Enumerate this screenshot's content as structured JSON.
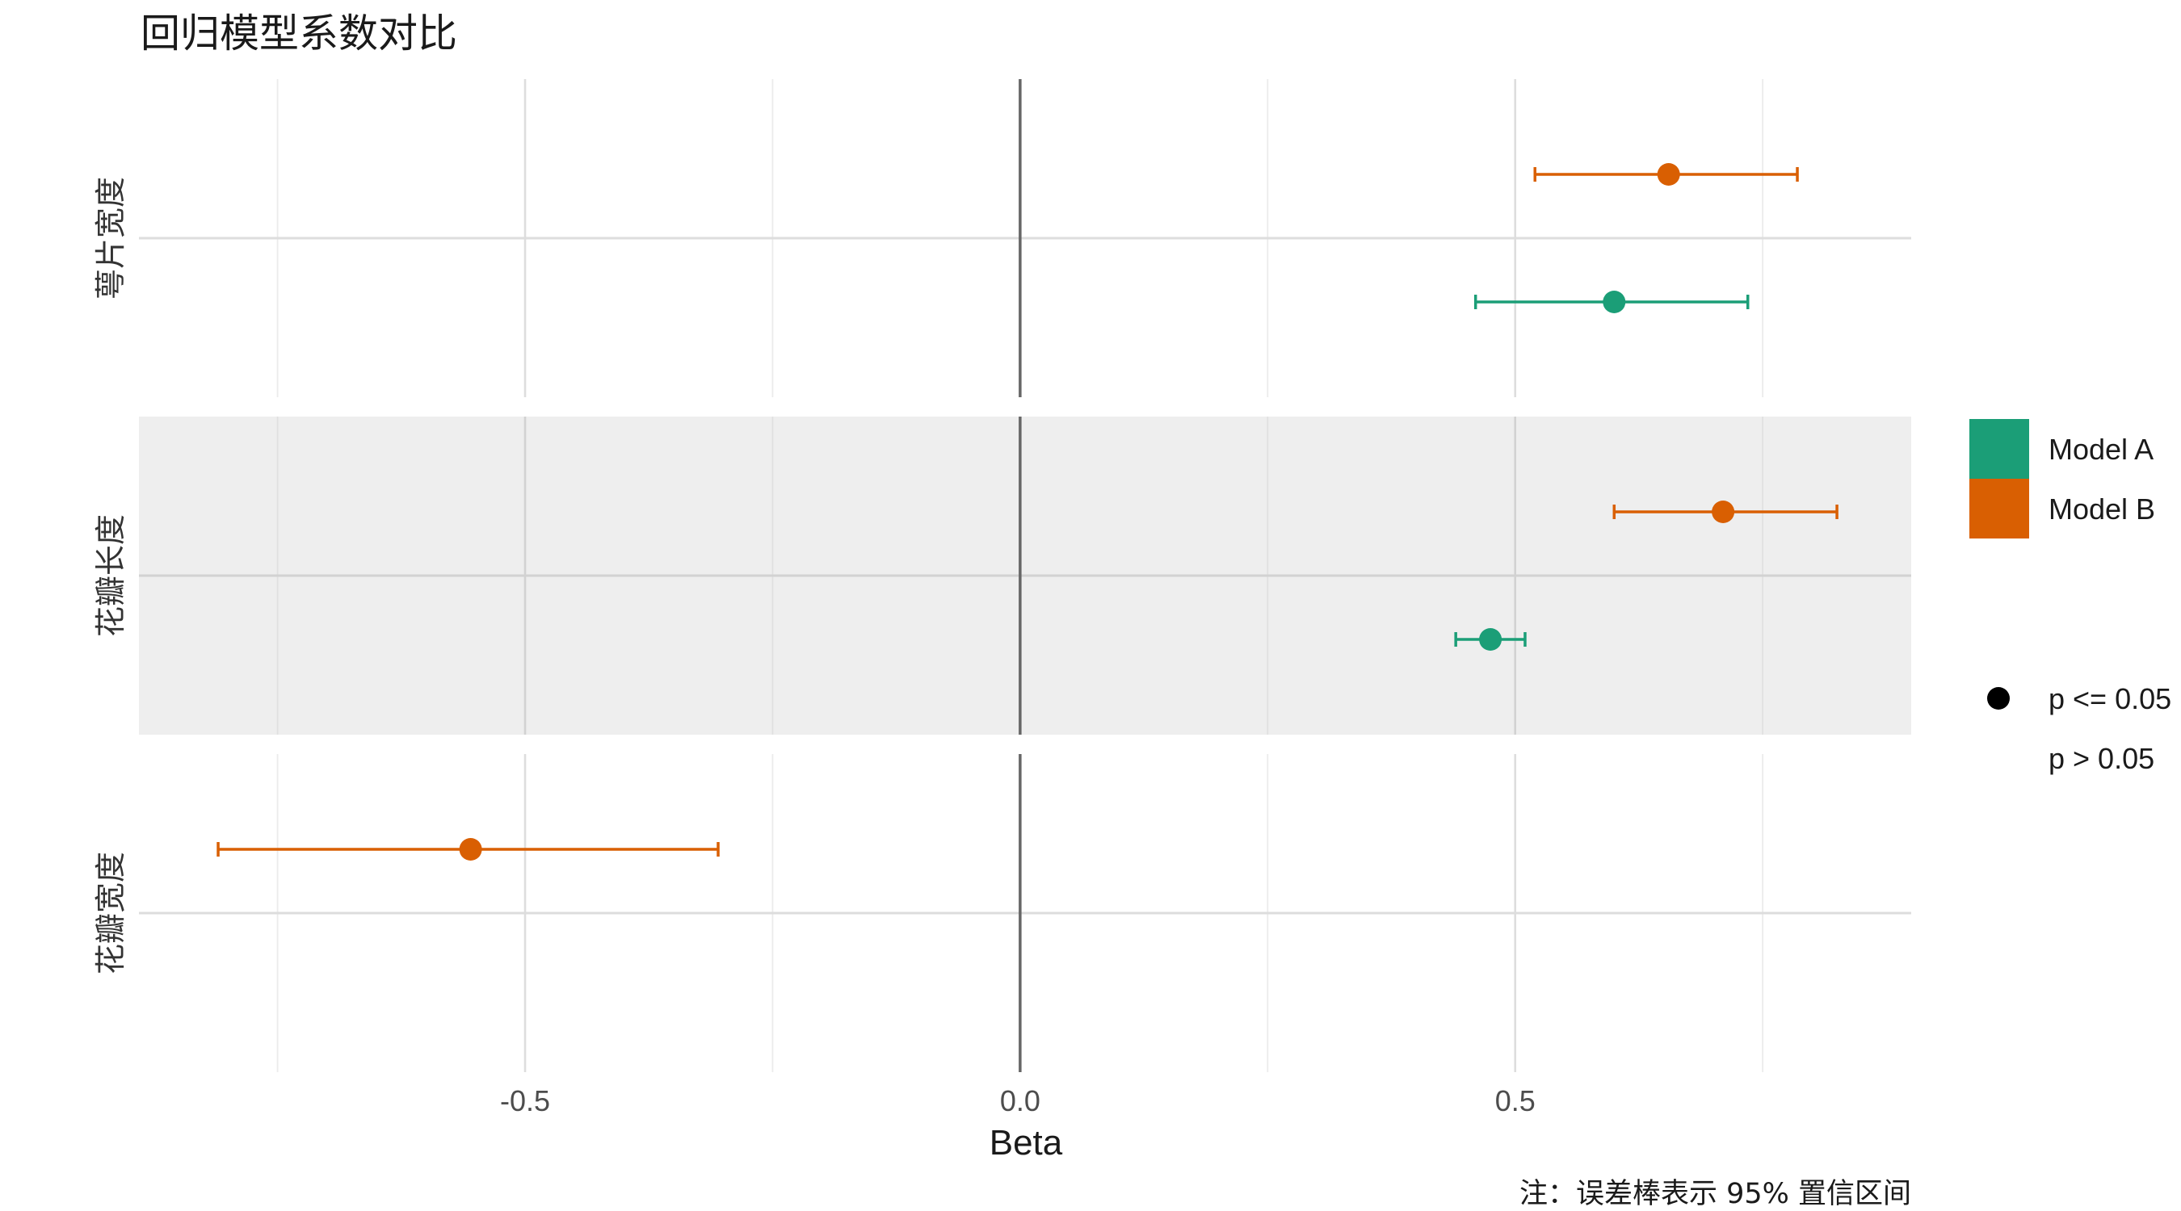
{
  "chart_data": {
    "type": "scatter",
    "title": "回归模型系数对比",
    "xlabel": "Beta",
    "caption": "注：误差棒表示 95% 置信区间",
    "xlim": [
      -0.89,
      0.9
    ],
    "x_ticks": [
      {
        "value": -0.5,
        "label": "-0.5"
      },
      {
        "value": 0.0,
        "label": "0.0"
      },
      {
        "value": 0.5,
        "label": "0.5"
      }
    ],
    "x_minor_ticks": [
      -0.75,
      -0.25,
      0.25,
      0.75
    ],
    "reference_line": 0,
    "grid": true,
    "legend_position": "right",
    "colors": {
      "Model A": "#1b9e77",
      "Model B": "#d95f02",
      "alt_panel_bg": "#eeeeee",
      "grid_major": "#dddddd",
      "grid_minor": "#ebebeb",
      "reference": "#666666"
    },
    "panels": [
      {
        "label": "萼片宽度",
        "shaded": false,
        "points": [
          {
            "model": "Model B",
            "beta": 0.655,
            "ci_low": 0.52,
            "ci_high": 0.785,
            "significant": true
          },
          {
            "model": "Model A",
            "beta": 0.6,
            "ci_low": 0.46,
            "ci_high": 0.735,
            "significant": true
          }
        ]
      },
      {
        "label": "花瓣长度",
        "shaded": true,
        "points": [
          {
            "model": "Model B",
            "beta": 0.71,
            "ci_low": 0.6,
            "ci_high": 0.825,
            "significant": true
          },
          {
            "model": "Model A",
            "beta": 0.475,
            "ci_low": 0.44,
            "ci_high": 0.51,
            "significant": true
          }
        ]
      },
      {
        "label": "花瓣宽度",
        "shaded": false,
        "points": [
          {
            "model": "Model B",
            "beta": -0.555,
            "ci_low": -0.81,
            "ci_high": -0.305,
            "significant": true
          }
        ]
      }
    ],
    "legend_color": [
      {
        "label": "Model A",
        "color": "#1b9e77"
      },
      {
        "label": "Model B",
        "color": "#d95f02"
      }
    ],
    "legend_shape": [
      {
        "label": "p <= 0.05",
        "symbol": "filled-circle"
      },
      {
        "label": "p > 0.05",
        "symbol": "none"
      }
    ]
  }
}
